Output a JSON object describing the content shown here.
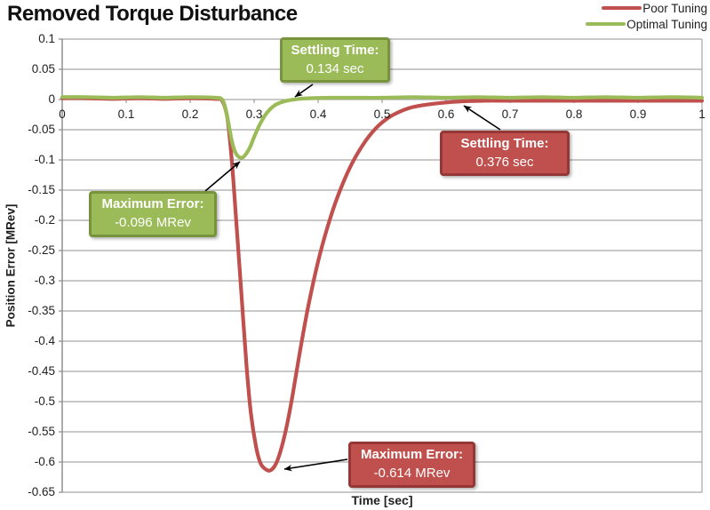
{
  "title": "Removed Torque Disturbance",
  "colors": {
    "poor": "#C0504D",
    "poor_border": "#953735",
    "optimal": "#9BBB59",
    "optimal_border": "#77933C",
    "gridline": "#A6A6A6",
    "axis_line": "#898989",
    "text": "#1F1F1F",
    "annotation_text": "#FFFFFF"
  },
  "legend": {
    "position": "top-right",
    "items": [
      {
        "label": "Poor Tuning",
        "color": "#C0504D"
      },
      {
        "label": "Optimal Tuning",
        "color": "#9BBB59"
      }
    ]
  },
  "chart_data": {
    "type": "line",
    "title": "Removed Torque Disturbance",
    "xlabel": "Time [sec]",
    "ylabel": "Position Error [MRev]",
    "xlim": [
      0,
      1
    ],
    "ylim": [
      -0.65,
      0.1
    ],
    "grid": "horizontal",
    "legend_position": "top-right",
    "x_ticks": {
      "values": [
        0,
        0.1,
        0.2,
        0.3,
        0.4,
        0.5,
        0.6,
        0.7,
        0.8,
        0.9,
        1
      ],
      "labels": [
        "0",
        "0.1",
        "0.2",
        "0.3",
        "0.4",
        "0.5",
        "0.6",
        "0.7",
        "0.8",
        "0.9",
        "1"
      ]
    },
    "y_ticks": {
      "values": [
        0.1,
        0.05,
        0,
        -0.05,
        -0.1,
        -0.15,
        -0.2,
        -0.25,
        -0.3,
        -0.35,
        -0.4,
        -0.45,
        -0.5,
        -0.55,
        -0.6,
        -0.65
      ],
      "labels": [
        "0.1",
        "0.05",
        "0",
        "-0.05",
        "-0.1",
        "-0.15",
        "-0.2",
        "-0.25",
        "-0.3",
        "-0.35",
        "-0.4",
        "-0.45",
        "-0.5",
        "-0.55",
        "-0.6",
        "-0.65"
      ]
    },
    "series": [
      {
        "name": "Poor Tuning",
        "color": "#C0504D",
        "max_error": -0.614,
        "settling_time_sec": 0.376,
        "points": [
          [
            0,
            0.002
          ],
          [
            0.04,
            0.002
          ],
          [
            0.08,
            0.001
          ],
          [
            0.12,
            0.002
          ],
          [
            0.16,
            0.001
          ],
          [
            0.2,
            0.002
          ],
          [
            0.24,
            0.001
          ],
          [
            0.25,
            -0.002
          ],
          [
            0.258,
            -0.03
          ],
          [
            0.265,
            -0.1
          ],
          [
            0.272,
            -0.2
          ],
          [
            0.28,
            -0.32
          ],
          [
            0.288,
            -0.44
          ],
          [
            0.295,
            -0.52
          ],
          [
            0.303,
            -0.575
          ],
          [
            0.31,
            -0.602
          ],
          [
            0.318,
            -0.612
          ],
          [
            0.325,
            -0.614
          ],
          [
            0.333,
            -0.605
          ],
          [
            0.341,
            -0.583
          ],
          [
            0.35,
            -0.545
          ],
          [
            0.36,
            -0.49
          ],
          [
            0.372,
            -0.415
          ],
          [
            0.385,
            -0.34
          ],
          [
            0.4,
            -0.268
          ],
          [
            0.415,
            -0.21
          ],
          [
            0.43,
            -0.162
          ],
          [
            0.45,
            -0.112
          ],
          [
            0.47,
            -0.075
          ],
          [
            0.49,
            -0.048
          ],
          [
            0.51,
            -0.03
          ],
          [
            0.53,
            -0.019
          ],
          [
            0.55,
            -0.012
          ],
          [
            0.58,
            -0.007
          ],
          [
            0.61,
            -0.004
          ],
          [
            0.626,
            -0.003
          ],
          [
            0.66,
            -0.002
          ],
          [
            0.7,
            -0.002
          ],
          [
            0.75,
            -0.002
          ],
          [
            0.8,
            -0.002
          ],
          [
            0.85,
            -0.002
          ],
          [
            0.9,
            -0.002
          ],
          [
            0.95,
            -0.002
          ],
          [
            1,
            -0.002
          ]
        ]
      },
      {
        "name": "Optimal Tuning",
        "color": "#9BBB59",
        "max_error": -0.096,
        "settling_time_sec": 0.134,
        "points": [
          [
            0,
            0.004
          ],
          [
            0.04,
            0.004
          ],
          [
            0.08,
            0.003
          ],
          [
            0.12,
            0.004
          ],
          [
            0.16,
            0.003
          ],
          [
            0.2,
            0.004
          ],
          [
            0.24,
            0.003
          ],
          [
            0.25,
            0
          ],
          [
            0.255,
            -0.014
          ],
          [
            0.26,
            -0.04
          ],
          [
            0.265,
            -0.068
          ],
          [
            0.27,
            -0.086
          ],
          [
            0.276,
            -0.095
          ],
          [
            0.282,
            -0.096
          ],
          [
            0.288,
            -0.089
          ],
          [
            0.294,
            -0.078
          ],
          [
            0.3,
            -0.062
          ],
          [
            0.308,
            -0.043
          ],
          [
            0.316,
            -0.028
          ],
          [
            0.324,
            -0.017
          ],
          [
            0.333,
            -0.009
          ],
          [
            0.344,
            -0.004
          ],
          [
            0.356,
            -0.001
          ],
          [
            0.37,
            0.001
          ],
          [
            0.384,
            0.002
          ],
          [
            0.42,
            0.003
          ],
          [
            0.46,
            0.003
          ],
          [
            0.5,
            0.003
          ],
          [
            0.55,
            0.004
          ],
          [
            0.6,
            0.003
          ],
          [
            0.65,
            0.004
          ],
          [
            0.7,
            0.003
          ],
          [
            0.75,
            0.004
          ],
          [
            0.8,
            0.003
          ],
          [
            0.85,
            0.004
          ],
          [
            0.9,
            0.003
          ],
          [
            0.95,
            0.004
          ],
          [
            1,
            0.003
          ]
        ]
      }
    ],
    "annotations": [
      {
        "series": "Optimal Tuning",
        "label": "Settling Time:",
        "value": "0.134 sec",
        "points_to": [
          0.365,
          0
        ]
      },
      {
        "series": "Poor Tuning",
        "label": "Settling Time:",
        "value": "0.376 sec",
        "points_to": [
          0.627,
          0
        ]
      },
      {
        "series": "Optimal Tuning",
        "label": "Maximum Error:",
        "value": "-0.096 MRev",
        "points_to": [
          0.282,
          -0.096
        ]
      },
      {
        "series": "Poor Tuning",
        "label": "Maximum Error:",
        "value": "-0.614 MRev",
        "points_to": [
          0.325,
          -0.614
        ]
      }
    ]
  }
}
